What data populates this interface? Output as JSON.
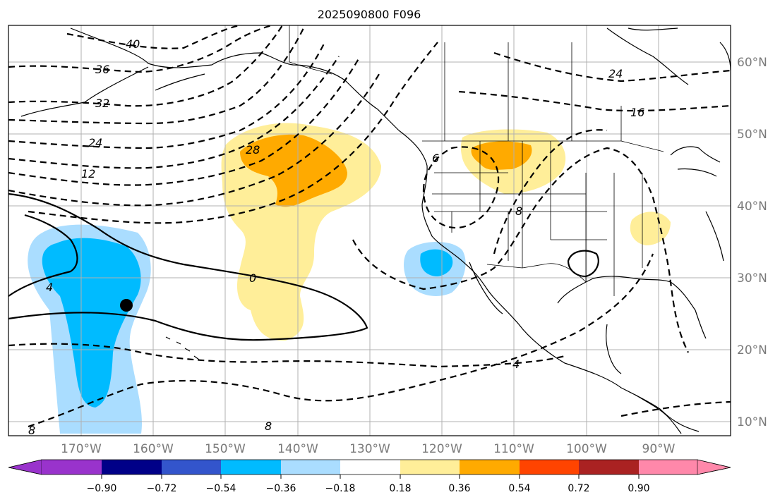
{
  "title": "2025090800 F096",
  "lat_labels": [
    "60°N",
    "50°N",
    "40°N",
    "30°N",
    "20°N",
    "10°N"
  ],
  "lon_labels": [
    "170°W",
    "160°W",
    "150°W",
    "140°W",
    "130°W",
    "120°W",
    "110°W",
    "100°W",
    "90°W"
  ],
  "colorbar": {
    "colors": [
      "#9933cc",
      "#000088",
      "#3355cc",
      "#00bbff",
      "#aaddff",
      "#ffffff",
      "#ffee99",
      "#ffaa00",
      "#ff4400",
      "#aa2222",
      "#ff88aa"
    ],
    "tick_labels": [
      "−0.90",
      "−0.72",
      "−0.54",
      "−0.36",
      "−0.18",
      "0.18",
      "0.36",
      "0.54",
      "0.72",
      "0.90"
    ]
  },
  "contour_labels": [
    "40",
    "36",
    "32",
    "28",
    "24",
    "24",
    "16",
    "12",
    "6",
    "8",
    "0",
    "4",
    "4",
    "8",
    "8"
  ],
  "marker": {
    "lat": 26,
    "lon": "164°W"
  }
}
